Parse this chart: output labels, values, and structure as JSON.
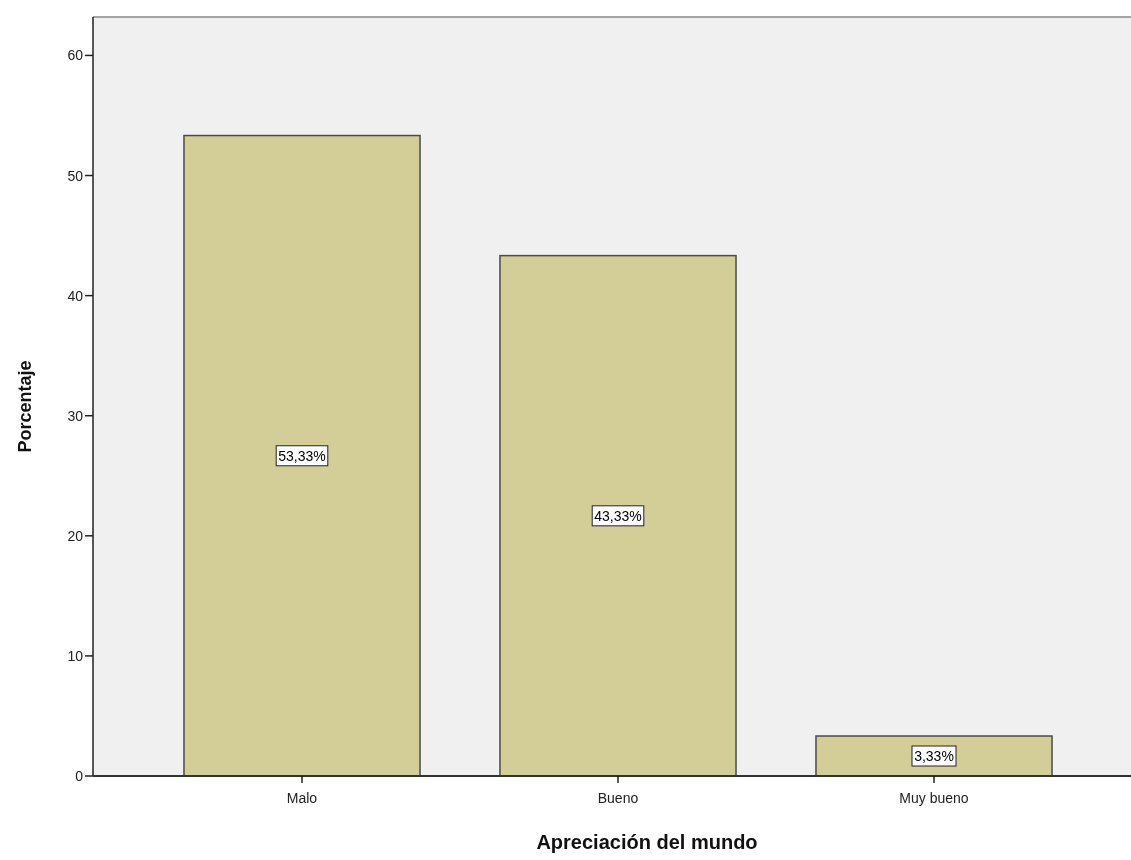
{
  "chart_data": {
    "type": "bar",
    "xlabel": "Apreciación del mundo",
    "ylabel": "Porcentaje",
    "categories": [
      "Malo",
      "Bueno",
      "Muy bueno"
    ],
    "values": [
      53.33,
      43.33,
      3.33
    ],
    "value_labels": [
      "53,33%",
      "43,33%",
      "3,33%"
    ],
    "color": "#d3ce97",
    "ylim": [
      0,
      63.2
    ],
    "yticks": [
      0,
      10,
      20,
      30,
      40,
      50,
      60
    ]
  }
}
